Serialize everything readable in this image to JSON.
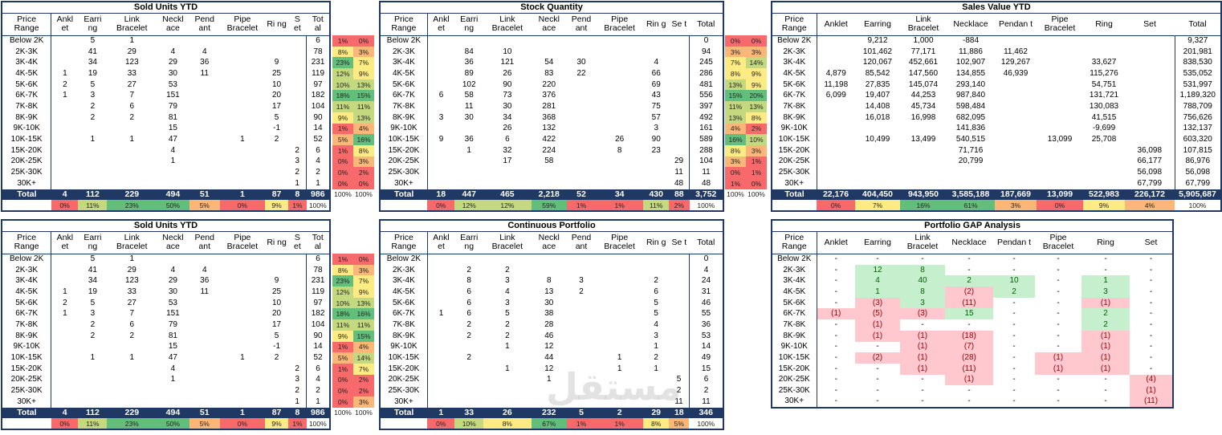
{
  "cols_sold": [
    "Price Range",
    "Ankl et",
    "Earri ng",
    "Link Bracelet",
    "Neckl ace",
    "Pend ant",
    "Pipe Bracelet",
    "Ri ng",
    "S et",
    "Tot al"
  ],
  "cols_stock": [
    "Price Range",
    "Ankl et",
    "Earri ng",
    "Link Bracelet",
    "Neckl ace",
    "Pend ant",
    "Pipe Bracelet",
    "Rin g",
    "Se t",
    "Total"
  ],
  "cols_value": [
    "Price Range",
    "Anklet",
    "Earring",
    "Link Bracelet",
    "Necklace",
    "Pendan t",
    "Pipe Bracelet",
    "Ring",
    "Set",
    "Total"
  ],
  "cols_cont": [
    "Price Range",
    "Ankl et",
    "Earri ng",
    "Link Bracelet",
    "Neckl ace",
    "Pend ant",
    "Pipe Bracelet",
    "Rin g",
    "Se t",
    "Total"
  ],
  "cols_gap": [
    "Price Range",
    "Anklet",
    "Earring",
    "Link Bracelet",
    "Necklace",
    "Pendan t",
    "Pipe Bracelet",
    "Ring",
    "Set"
  ],
  "ranges": [
    "Below 2K",
    "2K-3K",
    "3K-4K",
    "4K-5K",
    "5K-6K",
    "6K-7K",
    "7K-8K",
    "8K-9K",
    "9K-10K",
    "10K-15K",
    "15K-20K",
    "20K-25K",
    "25K-30K",
    "30K+"
  ],
  "sold_ytd": {
    "title": "Sold Units YTD",
    "rows": [
      [
        "",
        "5",
        "1",
        "",
        "",
        "",
        "",
        "",
        "6"
      ],
      [
        "",
        "41",
        "29",
        "4",
        "4",
        "",
        "",
        "",
        "78"
      ],
      [
        "",
        "34",
        "123",
        "29",
        "36",
        "",
        "9",
        "",
        "231"
      ],
      [
        "1",
        "19",
        "33",
        "30",
        "11",
        "",
        "25",
        "",
        "119"
      ],
      [
        "2",
        "5",
        "27",
        "53",
        "",
        "",
        "10",
        "",
        "97"
      ],
      [
        "1",
        "3",
        "7",
        "151",
        "",
        "",
        "20",
        "",
        "182"
      ],
      [
        "",
        "2",
        "6",
        "79",
        "",
        "",
        "17",
        "",
        "104"
      ],
      [
        "",
        "2",
        "2",
        "81",
        "",
        "",
        "5",
        "",
        "90"
      ],
      [
        "",
        "",
        "",
        "15",
        "",
        "",
        "-1",
        "",
        "14"
      ],
      [
        "",
        "1",
        "1",
        "47",
        "",
        "1",
        "2",
        "",
        "52"
      ],
      [
        "",
        "",
        "",
        "4",
        "",
        "",
        "",
        "2",
        "6"
      ],
      [
        "",
        "",
        "",
        "1",
        "",
        "",
        "",
        "3",
        "4"
      ],
      [
        "",
        "",
        "",
        "",
        "",
        "",
        "",
        "2",
        "2"
      ],
      [
        "",
        "",
        "",
        "",
        "",
        "",
        "",
        "1",
        "1"
      ]
    ],
    "total": [
      "Total",
      "4",
      "112",
      "229",
      "494",
      "51",
      "1",
      "87",
      "8",
      "986"
    ],
    "pct_total": [
      "0%",
      "11%",
      "23%",
      "50%",
      "5%",
      "0%",
      "9%",
      "1%",
      "100%"
    ]
  },
  "sold_side_a": [
    "1%",
    "8%",
    "23%",
    "12%",
    "10%",
    "18%",
    "11%",
    "9%",
    "1%",
    "5%",
    "1%",
    "0%",
    "0%",
    "0%"
  ],
  "sold_side_b": [
    "0%",
    "3%",
    "7%",
    "9%",
    "13%",
    "15%",
    "11%",
    "13%",
    "4%",
    "16%",
    "8%",
    "3%",
    "2%",
    "0%"
  ],
  "sold_side_b2": [
    "0%",
    "3%",
    "7%",
    "9%",
    "13%",
    "16%",
    "11%",
    "15%",
    "4%",
    "14%",
    "7%",
    "2%",
    "2%",
    "3%"
  ],
  "side_total": [
    "100%",
    "100%"
  ],
  "stock": {
    "title": "Stock Quantity",
    "rows": [
      [
        "",
        "",
        "",
        "",
        "",
        "",
        "",
        "",
        "0"
      ],
      [
        "",
        "84",
        "10",
        "",
        "",
        "",
        "",
        "",
        "94"
      ],
      [
        "",
        "36",
        "121",
        "54",
        "30",
        "",
        "4",
        "",
        "245"
      ],
      [
        "",
        "89",
        "26",
        "83",
        "22",
        "",
        "66",
        "",
        "286"
      ],
      [
        "",
        "102",
        "90",
        "220",
        "",
        "",
        "69",
        "",
        "481"
      ],
      [
        "6",
        "58",
        "73",
        "376",
        "",
        "",
        "43",
        "",
        "556"
      ],
      [
        "",
        "11",
        "30",
        "281",
        "",
        "",
        "75",
        "",
        "397"
      ],
      [
        "3",
        "30",
        "34",
        "368",
        "",
        "",
        "57",
        "",
        "492"
      ],
      [
        "",
        "",
        "26",
        "132",
        "",
        "",
        "3",
        "",
        "161"
      ],
      [
        "9",
        "36",
        "6",
        "422",
        "",
        "26",
        "90",
        "",
        "589"
      ],
      [
        "",
        "1",
        "32",
        "224",
        "",
        "8",
        "23",
        "",
        "288"
      ],
      [
        "",
        "",
        "17",
        "58",
        "",
        "",
        "",
        "29",
        "104"
      ],
      [
        "",
        "",
        "",
        "",
        "",
        "",
        "",
        "11",
        "11"
      ],
      [
        "",
        "",
        "",
        "",
        "",
        "",
        "",
        "48",
        "48"
      ]
    ],
    "total": [
      "Total",
      "18",
      "447",
      "465",
      "2,218",
      "52",
      "34",
      "430",
      "88",
      "3,752"
    ],
    "pct_total": [
      "0%",
      "12%",
      "12%",
      "59%",
      "1%",
      "1%",
      "11%",
      "2%",
      "100%"
    ],
    "side_a": [
      "0%",
      "3%",
      "7%",
      "8%",
      "13%",
      "15%",
      "11%",
      "13%",
      "4%",
      "16%",
      "8%",
      "3%",
      "0%",
      "1%"
    ],
    "side_b": [
      "0%",
      "3%",
      "14%",
      "9%",
      "9%",
      "20%",
      "13%",
      "8%",
      "2%",
      "10%",
      "3%",
      "1%",
      "1%",
      "0%"
    ]
  },
  "value": {
    "title": "Sales Value YTD",
    "rows": [
      [
        "",
        "9,212",
        "1,000",
        "-884",
        "",
        "",
        "",
        "",
        "9,327"
      ],
      [
        "",
        "101,462",
        "77,171",
        "11,886",
        "11,462",
        "",
        "",
        "",
        "201,981"
      ],
      [
        "",
        "120,067",
        "452,661",
        "102,907",
        "129,267",
        "",
        "33,627",
        "",
        "838,530"
      ],
      [
        "4,879",
        "85,542",
        "147,560",
        "134,855",
        "46,939",
        "",
        "115,276",
        "",
        "535,052"
      ],
      [
        "11,198",
        "27,835",
        "145,074",
        "293,140",
        "",
        "",
        "54,751",
        "",
        "531,997"
      ],
      [
        "6,099",
        "19,407",
        "44,253",
        "987,840",
        "",
        "",
        "131,721",
        "",
        "1,189,320"
      ],
      [
        "",
        "14,408",
        "45,734",
        "598,484",
        "",
        "",
        "130,083",
        "",
        "788,709"
      ],
      [
        "",
        "16,018",
        "16,998",
        "682,095",
        "",
        "",
        "41,515",
        "",
        "756,626"
      ],
      [
        "",
        "",
        "",
        "141,836",
        "",
        "",
        "-9,699",
        "",
        "132,137"
      ],
      [
        "",
        "10,499",
        "13,499",
        "540,515",
        "",
        "13,099",
        "25,708",
        "",
        "603,320"
      ],
      [
        "",
        "",
        "",
        "71,716",
        "",
        "",
        "",
        "36,098",
        "107,815"
      ],
      [
        "",
        "",
        "",
        "20,799",
        "",
        "",
        "",
        "66,177",
        "86,976"
      ],
      [
        "",
        "",
        "",
        "",
        "",
        "",
        "",
        "56,098",
        "56,098"
      ],
      [
        "",
        "",
        "",
        "",
        "",
        "",
        "",
        "67,799",
        "67,799"
      ]
    ],
    "total": [
      "Total",
      "22,176",
      "404,450",
      "943,950",
      "3,585,188",
      "187,669",
      "13,099",
      "522,983",
      "226,172",
      "5,905,687"
    ],
    "pct_total": [
      "0%",
      "7%",
      "16%",
      "61%",
      "3%",
      "0%",
      "9%",
      "4%",
      "100%"
    ]
  },
  "cont": {
    "title": "Continuous Portfolio",
    "rows": [
      [
        "",
        "",
        "",
        "",
        "",
        "",
        "",
        "",
        "0"
      ],
      [
        "",
        "2",
        "2",
        "",
        "",
        "",
        "",
        "",
        "4"
      ],
      [
        "",
        "8",
        "3",
        "8",
        "3",
        "",
        "2",
        "",
        "24"
      ],
      [
        "",
        "6",
        "4",
        "13",
        "2",
        "",
        "6",
        "",
        "31"
      ],
      [
        "",
        "6",
        "3",
        "30",
        "",
        "",
        "5",
        "",
        "46"
      ],
      [
        "1",
        "6",
        "5",
        "38",
        "",
        "",
        "5",
        "",
        "55"
      ],
      [
        "",
        "2",
        "2",
        "28",
        "",
        "",
        "4",
        "",
        "36"
      ],
      [
        "",
        "2",
        "2",
        "46",
        "",
        "",
        "3",
        "",
        "53"
      ],
      [
        "",
        "",
        "1",
        "12",
        "",
        "",
        "1",
        "",
        "14"
      ],
      [
        "",
        "2",
        "",
        "44",
        "",
        "1",
        "2",
        "",
        "49"
      ],
      [
        "",
        "",
        "1",
        "12",
        "",
        "1",
        "1",
        "",
        "15"
      ],
      [
        "",
        "",
        "",
        "1",
        "",
        "",
        "",
        "5",
        "6"
      ],
      [
        "",
        "",
        "",
        "",
        "",
        "",
        "",
        "2",
        "2"
      ],
      [
        "",
        "",
        "",
        "",
        "",
        "",
        "",
        "11",
        "11"
      ]
    ],
    "total": [
      "Total",
      "1",
      "33",
      "26",
      "232",
      "5",
      "2",
      "29",
      "18",
      "346"
    ],
    "pct_total": [
      "0%",
      "10%",
      "8%",
      "67%",
      "1%",
      "1%",
      "8%",
      "5%",
      "100%"
    ]
  },
  "gap": {
    "title": "Portfolio GAP Analysis",
    "rows": [
      [
        "-",
        "-",
        "-",
        "-",
        "-",
        "-",
        "-",
        "-"
      ],
      [
        "-",
        "12",
        "8",
        "-",
        "-",
        "-",
        "-",
        "-"
      ],
      [
        "-",
        "4",
        "40",
        "2",
        "10",
        "-",
        "1",
        "-"
      ],
      [
        "-",
        "1",
        "8",
        "(2)",
        "2",
        "-",
        "3",
        "-"
      ],
      [
        "-",
        "(3)",
        "3",
        "(11)",
        "-",
        "-",
        "(1)",
        "-"
      ],
      [
        "(1)",
        "(5)",
        "(3)",
        "15",
        "-",
        "-",
        "2",
        "-"
      ],
      [
        "-",
        "(1)",
        "-",
        "-",
        "-",
        "-",
        "2",
        "-"
      ],
      [
        "-",
        "(1)",
        "(1)",
        "(18)",
        "-",
        "-",
        "(1)",
        "-"
      ],
      [
        "-",
        "-",
        "(1)",
        "(7)",
        "-",
        "-",
        "(1)",
        "-"
      ],
      [
        "-",
        "(2)",
        "(1)",
        "(28)",
        "-",
        "(1)",
        "(1)",
        "-"
      ],
      [
        "-",
        "-",
        "(1)",
        "(11)",
        "-",
        "(1)",
        "(1)",
        "-"
      ],
      [
        "-",
        "-",
        "-",
        "(1)",
        "-",
        "-",
        "-",
        "(4)"
      ],
      [
        "-",
        "-",
        "-",
        "-",
        "-",
        "-",
        "-",
        "(1)"
      ],
      [
        "-",
        "-",
        "-",
        "-",
        "-",
        "-",
        "-",
        "(11)"
      ]
    ]
  },
  "watermark": "مستقل"
}
